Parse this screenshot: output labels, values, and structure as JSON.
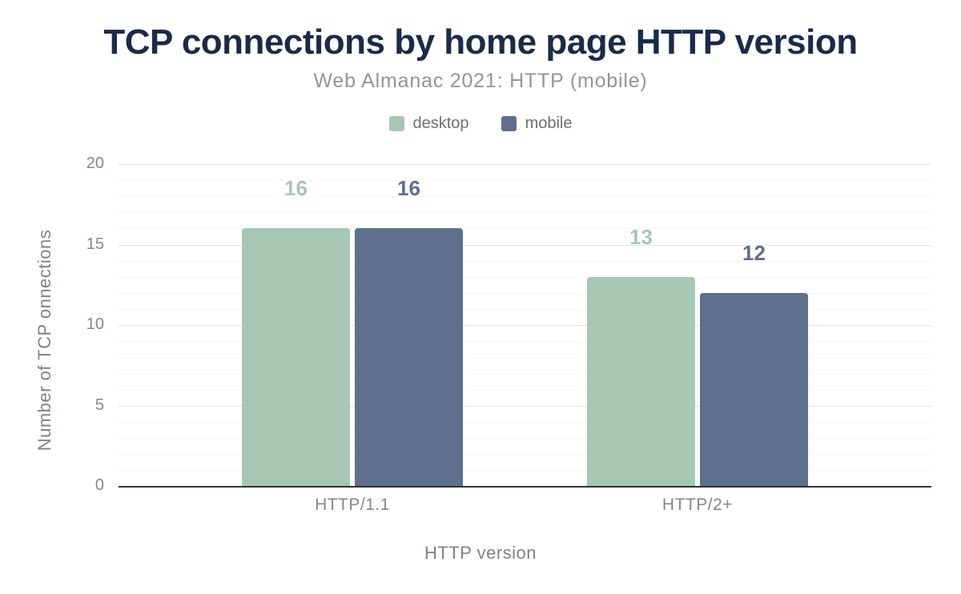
{
  "chart_data": {
    "type": "bar",
    "title": "TCP connections by home page HTTP version",
    "subtitle": "Web Almanac 2021: HTTP (mobile)",
    "xlabel": "HTTP version",
    "ylabel": "Number of TCP onnections",
    "categories": [
      "HTTP/1.1",
      "HTTP/2+"
    ],
    "series": [
      {
        "name": "desktop",
        "color": "#a6c7b4",
        "values": [
          16,
          13
        ]
      },
      {
        "name": "mobile",
        "color": "#5e6f8d",
        "values": [
          16,
          12
        ]
      }
    ],
    "ylim": [
      0,
      20
    ],
    "yticks": [
      0,
      5,
      10,
      15,
      20
    ],
    "minor_grid_step": 1,
    "grid": true,
    "legend_position": "top",
    "colors": {
      "title": "#1a2b49",
      "subtitle": "#919699",
      "legend_text": "#6f6f6f",
      "axis_text": "#82888c",
      "axis_title": "#7b8480",
      "axis_line": "#333333",
      "grid_major": "#e2e2e2",
      "grid_minor": "#f6f4f4"
    }
  }
}
